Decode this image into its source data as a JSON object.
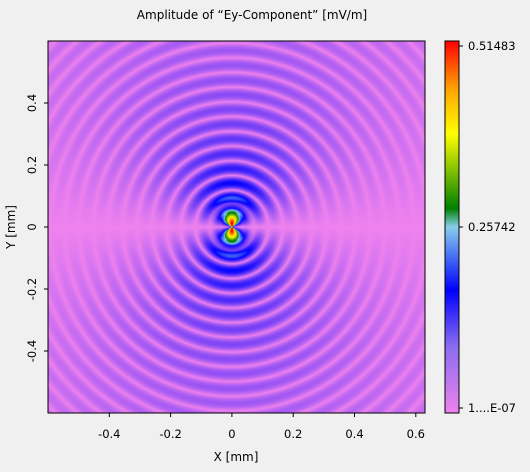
{
  "chart_data": {
    "type": "heatmap",
    "title": "Amplitude of “Ey-Component”  [mV/m]",
    "xlabel": "X [mm]",
    "ylabel": "Y [mm]",
    "xlim": [
      -0.6,
      0.63
    ],
    "ylim": [
      -0.6,
      0.6
    ],
    "x_ticks": [
      {
        "value": -0.4,
        "label": "-0.4"
      },
      {
        "value": -0.2,
        "label": "-0.2"
      },
      {
        "value": 0,
        "label": "0"
      },
      {
        "value": 0.2,
        "label": "0.2"
      },
      {
        "value": 0.4,
        "label": "0.4"
      },
      {
        "value": 0.6,
        "label": "0.6"
      }
    ],
    "y_ticks": [
      {
        "value": -0.4,
        "label": "-0.4"
      },
      {
        "value": -0.2,
        "label": "-0.2"
      },
      {
        "value": 0,
        "label": "0"
      },
      {
        "value": 0.2,
        "label": "0.2"
      },
      {
        "value": 0.4,
        "label": "0.4"
      }
    ],
    "colorbar": {
      "max_label": "0.51483",
      "mid_label": "0.25742",
      "min_label": "1....E-07",
      "max": 0.51483,
      "mid": 0.25742,
      "colors": [
        "#ee82ee",
        "#0000ff",
        "#87ceeb",
        "#008000",
        "#ffff00",
        "#ffa500",
        "#ff0000"
      ]
    },
    "peaks": [
      {
        "x": 0.0,
        "y": 0.05,
        "value": 0.51483
      },
      {
        "x": 0.0,
        "y": -0.05,
        "value": 0.51483
      }
    ],
    "grid": false,
    "legend": "colorbar right"
  }
}
